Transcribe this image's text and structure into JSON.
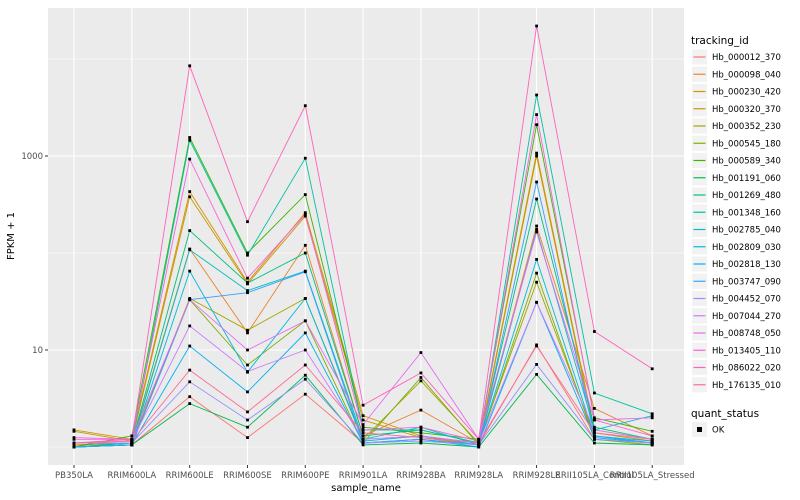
{
  "figure": {
    "panel_bg": "#EBEBEB",
    "grid_color": "#FFFFFF",
    "tick_label_color": "#4D4D4D",
    "tick_mark_color": "#333333",
    "point_color": "#000000",
    "legend_key_bg": "#F2F2F2"
  },
  "chart_data": {
    "type": "line",
    "title": "",
    "xlabel": "sample_name",
    "ylabel": "FPKM + 1",
    "y_scale": "log10",
    "ylim": [
      0.9,
      25000
    ],
    "y_ticks": [
      10,
      1000
    ],
    "y_tick_labels": [
      "10",
      "1000"
    ],
    "y_minor_gridlines": [
      1,
      100,
      10000
    ],
    "grid": true,
    "legend": {
      "title": "tracking_id",
      "position": "right"
    },
    "legend2": {
      "title": "quant_status",
      "items": [
        {
          "label": "OK",
          "marker": "black-square"
        }
      ]
    },
    "categories": [
      "PB350LA",
      "RRIM600LA",
      "RRIM600LE",
      "RRIM600SE",
      "RRIM600PE",
      "RRIM901LA",
      "RRIM928BA",
      "RRIM928LA",
      "RRIM928LE",
      "RRII105LA_Control",
      "RRII105LA_Stressed"
    ],
    "series": [
      {
        "name": "Hb_000012_370",
        "color": "#F8766D",
        "values": [
          1.0,
          1.05,
          3.3,
          1.25,
          3.5,
          1.1,
          1.2,
          1.05,
          11.3,
          1.2,
          1.1
        ]
      },
      {
        "name": "Hb_000098_040",
        "color": "#EA8331",
        "values": [
          1.05,
          1.1,
          110,
          15,
          120,
          1.3,
          2.4,
          1.1,
          190,
          2.5,
          1.3
        ]
      },
      {
        "name": "Hb_000230_420",
        "color": "#D89000",
        "values": [
          1.5,
          1.2,
          430,
          50,
          260,
          2.1,
          1.3,
          1.1,
          1070,
          1.5,
          1.2
        ]
      },
      {
        "name": "Hb_000320_370",
        "color": "#C09B00",
        "values": [
          1.45,
          1.15,
          380,
          48,
          240,
          1.9,
          1.25,
          1.05,
          1000,
          1.4,
          1.15
        ]
      },
      {
        "name": "Hb_000352_230",
        "color": "#A3A500",
        "values": [
          1.05,
          1.1,
          34,
          16,
          34,
          1.2,
          4.8,
          1.1,
          50,
          1.3,
          1.1
        ]
      },
      {
        "name": "Hb_000545_180",
        "color": "#7CAE00",
        "values": [
          1.0,
          1.05,
          33,
          7,
          20,
          1.1,
          5.2,
          1.05,
          62,
          1.2,
          1.05
        ]
      },
      {
        "name": "Hb_000589_340",
        "color": "#39B600",
        "values": [
          1.0,
          1.3,
          1550,
          100,
          400,
          1.6,
          1.4,
          1.2,
          2100,
          2.0,
          1.45
        ]
      },
      {
        "name": "Hb_001191_060",
        "color": "#00BB4E",
        "values": [
          1.0,
          1.05,
          2.8,
          1.6,
          5.5,
          1.05,
          1.1,
          1.0,
          5.6,
          1.1,
          1.05
        ]
      },
      {
        "name": "Hb_001269_480",
        "color": "#00BF7D",
        "values": [
          1.0,
          1.1,
          170,
          49,
          100,
          1.3,
          1.5,
          1.1,
          360,
          1.6,
          1.2
        ]
      },
      {
        "name": "Hb_001348_160",
        "color": "#00C1A3",
        "values": [
          1.0,
          1.1,
          1450,
          95,
          950,
          1.5,
          1.5,
          1.1,
          4250,
          3.6,
          2.2
        ]
      },
      {
        "name": "Hb_002785_040",
        "color": "#00BFC4",
        "values": [
          1.0,
          1.05,
          108,
          41,
          65,
          1.2,
          1.6,
          1.05,
          175,
          1.5,
          2.1
        ]
      },
      {
        "name": "Hb_002809_030",
        "color": "#00BAE0",
        "values": [
          1.0,
          1.05,
          65,
          5.9,
          34,
          1.15,
          1.3,
          1.05,
          86,
          1.3,
          1.15
        ]
      },
      {
        "name": "Hb_002818_130",
        "color": "#00B0F6",
        "values": [
          1.0,
          1.05,
          11,
          3.7,
          15,
          1.1,
          1.2,
          1.0,
          31,
          1.25,
          1.1
        ]
      },
      {
        "name": "Hb_003747_090",
        "color": "#35A2FF",
        "values": [
          1.0,
          1.05,
          33,
          39,
          64,
          1.1,
          1.2,
          1.05,
          540,
          1.3,
          1.1
        ]
      },
      {
        "name": "Hb_004452_070",
        "color": "#9590FF",
        "values": [
          1.1,
          1.1,
          4.7,
          1.9,
          5.0,
          1.1,
          1.15,
          1.05,
          7.1,
          1.2,
          1.1
        ]
      },
      {
        "name": "Hb_007044_270",
        "color": "#C77CFF",
        "values": [
          1.1,
          1.15,
          17.7,
          6,
          10,
          1.2,
          1.3,
          1.1,
          31,
          1.5,
          1.2
        ]
      },
      {
        "name": "Hb_008748_050",
        "color": "#E76BF3",
        "values": [
          1.25,
          1.2,
          33,
          10,
          20,
          1.7,
          9.4,
          1.2,
          165,
          1.9,
          2.0
        ]
      },
      {
        "name": "Hb_013405_110",
        "color": "#FA62DB",
        "values": [
          1.2,
          1.2,
          930,
          55,
          250,
          1.5,
          1.6,
          1.15,
          2670,
          1.9,
          1.3
        ]
      },
      {
        "name": "Hb_086022_020",
        "color": "#FF62BC",
        "values": [
          1.1,
          1.2,
          8500,
          210,
          3300,
          2.7,
          5.8,
          1.2,
          21900,
          15.5,
          6.4
        ]
      },
      {
        "name": "Hb_176135_010",
        "color": "#FF6A98",
        "values": [
          1.1,
          1.15,
          6.2,
          2.3,
          7,
          1.4,
          1.25,
          1.1,
          11,
          1.4,
          1.2
        ]
      }
    ]
  }
}
